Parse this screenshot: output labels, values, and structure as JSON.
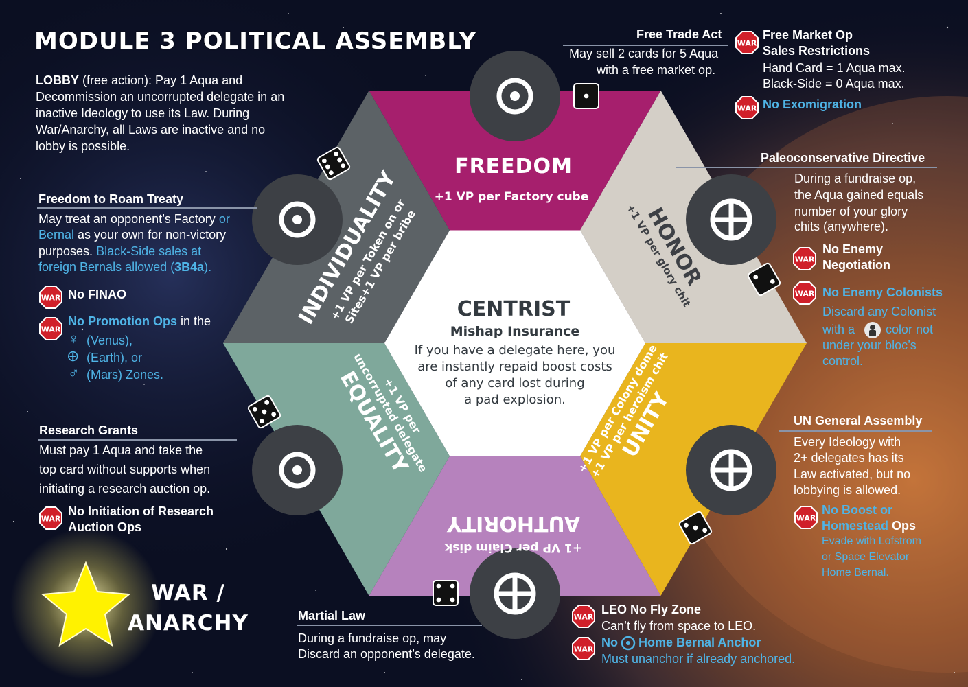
{
  "title": "MODULE 3 POLITICAL ASSEMBLY",
  "lobby": {
    "label": "LOBBY",
    "qualifier": " (free action):",
    "text": " Pay 1 Aqua and Decommission an uncorrupted delegate in an inactive Ideology to use its Law. During War/Anarchy, all Laws are inactive and no lobby is possible."
  },
  "war_badge": "WAR",
  "ideologies": {
    "freedom": {
      "name": "FREEDOM",
      "bonus": "+1 VP per Factory cube"
    },
    "honor": {
      "name": "HONOR",
      "bonus": "+1 VP per glory chit"
    },
    "unity": {
      "name": "UNITY",
      "bonus1": "+1 VP per Colony dome",
      "bonus2": "+1 VP per heroism chit"
    },
    "authority": {
      "name": "AUTHORITY",
      "bonus": "+1 VP per Claim disk"
    },
    "equality": {
      "name": "EQUALITY",
      "bonus1": "+1 VP per",
      "bonus2": "uncorrupted delegate"
    },
    "individuality": {
      "name": "INDIVIDUALITY",
      "bonus1a": "+1 VP per Token on",
      "bonus1b": "or",
      "bonus2": "Sites+1 VP per bribe"
    },
    "centrist": {
      "name": "CENTRIST",
      "subtitle": "Mishap Insurance",
      "lines": [
        "If you have a delegate here, you",
        "are instantly repaid boost costs",
        "of any card lost during",
        "a pad explosion."
      ]
    }
  },
  "laws": {
    "free_trade": {
      "title": "Free Trade Act",
      "lines": [
        "May sell 2 cards for 5 Aqua",
        "with a free market op."
      ]
    },
    "free_market": {
      "title1": "Free Market Op",
      "title2": "Sales Restrictions",
      "lines": [
        "Hand Card = 1 Aqua max.",
        "Black-Side = 0 Aqua max."
      ],
      "war2": "No Exomigration"
    },
    "paleo": {
      "title": "Paleoconservative Directive",
      "lines": [
        "During a fundraise op,",
        "the Aqua gained equals",
        "number of your glory",
        "chits (anywhere)."
      ],
      "war1a": "No Enemy",
      "war1b": "Negotiation",
      "war2": "No Enemy Colonists",
      "war2_lines": [
        "Discard any Colonist",
        "with a",
        "color not",
        "under your bloc’s",
        "control."
      ]
    },
    "un": {
      "title": "UN General Assembly",
      "lines": [
        "Every Ideology with",
        "2+ delegates has its",
        "Law activated, but no",
        "lobbying is allowed."
      ],
      "war1a": "No Boost",
      "war1or": " or",
      "war1b": "Homestead",
      "war1c": " Ops",
      "war1_lines": [
        "Evade with Lofstrom",
        "or Space Elevator",
        "Home Bernal."
      ]
    },
    "martial": {
      "title": "Martial Law",
      "lines": [
        "During a fundraise op, may",
        "Discard an opponent’s delegate."
      ]
    },
    "leo": {
      "war1": "LEO No Fly Zone",
      "war1_line": "Can’t fly from space to LEO.",
      "war2a": "No",
      "war2b": "Home Bernal Anchor",
      "war2_line": "Must unanchor if already anchored."
    },
    "research": {
      "title": "Research Grants",
      "lines": [
        "Must pay 1 Aqua and take the",
        "top card without supports when",
        "initiating a research auction op."
      ],
      "war1a": "No Initiation of Research",
      "war1b": "Auction Ops"
    },
    "roam": {
      "title": "Freedom to Roam Treaty",
      "line1a": "May treat an opponent’s Factory",
      "line1b": " or",
      "line2a": "Bernal",
      "line2b": " as your own for non-victory",
      "line3a": "purposes.",
      "line3b": " Black-Side sales at",
      "line4a": "foreign Bernals allowed (",
      "line4b": "3B4a",
      "line4c": ").",
      "war1": "No FINAO",
      "war2a": "No Promotion Ops",
      "war2b": " in the",
      "zones": [
        "(Venus),",
        "(Earth), or",
        "(Mars) Zones."
      ],
      "zone_glyphs": [
        "♀",
        "⊕",
        "♂"
      ]
    }
  },
  "war_anarchy": {
    "line1": "WAR /",
    "line2": "ANARCHY"
  },
  "colors": {
    "freedom": "#a61f6d",
    "honor": "#d4cfc7",
    "unity": "#e9b51e",
    "authority": "#b682bd",
    "equality": "#7fa89b",
    "individuality": "#5c6266",
    "centrist": "#ffffff",
    "dark": "#3d4045",
    "link": "#4fb4e6"
  }
}
